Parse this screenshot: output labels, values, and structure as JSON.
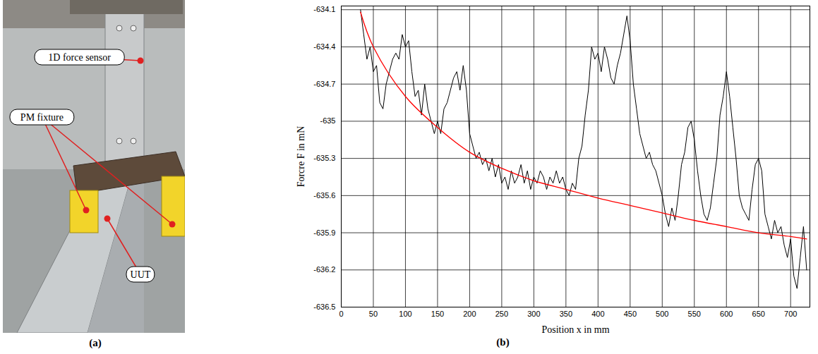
{
  "photo": {
    "labels": [
      "1D force sensor",
      "PM fixture",
      "UUT"
    ],
    "caption": "(a)"
  },
  "chart_data": {
    "type": "line",
    "caption": "(b)",
    "x_label": "Position x in mm",
    "y_label": "Forcre F in mN",
    "xlim": [
      0,
      730
    ],
    "xticks": [
      0,
      50,
      100,
      150,
      200,
      250,
      300,
      350,
      400,
      450,
      500,
      550,
      600,
      650,
      700
    ],
    "ylim": [
      -636.5,
      -634.07
    ],
    "yticks": [
      -634.1,
      -634.4,
      -634.7,
      -635,
      -635.3,
      -635.6,
      -635.9,
      -636.2,
      -636.5
    ],
    "grid": true,
    "series": [
      {
        "color": "#000000",
        "x": [
          30,
          35,
          40,
          45,
          50,
          55,
          60,
          65,
          70,
          75,
          80,
          85,
          90,
          95,
          100,
          105,
          110,
          115,
          120,
          125,
          130,
          135,
          140,
          145,
          150,
          155,
          160,
          165,
          170,
          175,
          180,
          185,
          190,
          195,
          200,
          205,
          210,
          215,
          220,
          225,
          230,
          235,
          240,
          245,
          250,
          255,
          260,
          265,
          270,
          275,
          280,
          285,
          290,
          295,
          300,
          305,
          310,
          315,
          320,
          325,
          330,
          335,
          340,
          345,
          350,
          355,
          360,
          365,
          370,
          375,
          380,
          385,
          390,
          395,
          400,
          405,
          410,
          415,
          420,
          425,
          430,
          435,
          440,
          445,
          450,
          455,
          460,
          465,
          470,
          475,
          480,
          485,
          490,
          495,
          500,
          505,
          510,
          515,
          520,
          525,
          530,
          535,
          540,
          545,
          550,
          555,
          560,
          565,
          570,
          575,
          580,
          585,
          590,
          595,
          600,
          605,
          610,
          615,
          620,
          625,
          630,
          635,
          640,
          645,
          650,
          655,
          660,
          665,
          670,
          675,
          680,
          685,
          690,
          695,
          700,
          705,
          710,
          715,
          720,
          725
        ],
        "values": [
          -634.1,
          -634.3,
          -634.5,
          -634.4,
          -634.6,
          -634.55,
          -634.85,
          -634.9,
          -634.7,
          -634.6,
          -634.5,
          -634.45,
          -634.5,
          -634.3,
          -634.4,
          -634.35,
          -634.6,
          -634.8,
          -634.75,
          -634.95,
          -634.7,
          -634.9,
          -635.0,
          -635.1,
          -635.0,
          -635.1,
          -634.9,
          -634.85,
          -634.75,
          -634.65,
          -634.6,
          -634.75,
          -634.55,
          -634.75,
          -635.1,
          -635.2,
          -635.3,
          -635.25,
          -635.35,
          -635.3,
          -635.4,
          -635.3,
          -635.45,
          -635.35,
          -635.5,
          -635.45,
          -635.55,
          -635.4,
          -635.5,
          -635.45,
          -635.35,
          -635.5,
          -635.4,
          -635.55,
          -635.45,
          -635.5,
          -635.4,
          -635.45,
          -635.55,
          -635.45,
          -635.5,
          -635.4,
          -635.5,
          -635.45,
          -635.55,
          -635.6,
          -635.5,
          -635.55,
          -635.3,
          -635.2,
          -634.95,
          -634.75,
          -634.4,
          -634.5,
          -634.45,
          -634.6,
          -634.4,
          -634.5,
          -634.65,
          -634.7,
          -634.55,
          -634.45,
          -634.3,
          -634.15,
          -634.35,
          -634.7,
          -634.9,
          -635.1,
          -635.2,
          -635.3,
          -635.25,
          -635.35,
          -635.4,
          -635.5,
          -635.6,
          -635.75,
          -635.85,
          -635.7,
          -635.8,
          -635.6,
          -635.35,
          -635.25,
          -635.05,
          -635.0,
          -635.15,
          -635.4,
          -635.6,
          -635.75,
          -635.8,
          -635.7,
          -635.5,
          -635.3,
          -634.95,
          -634.8,
          -634.6,
          -634.8,
          -635.05,
          -635.3,
          -635.6,
          -635.7,
          -635.75,
          -635.8,
          -635.55,
          -635.35,
          -635.3,
          -635.4,
          -635.75,
          -635.85,
          -635.95,
          -635.8,
          -635.9,
          -635.85,
          -636.0,
          -636.1,
          -635.95,
          -636.25,
          -636.35,
          -636.1,
          -635.85,
          -636.2
        ]
      },
      {
        "color": "#ff0000",
        "x": [
          30,
          50,
          100,
          150,
          200,
          250,
          300,
          350,
          400,
          450,
          500,
          550,
          600,
          650,
          700,
          725
        ],
        "values": [
          -634.12,
          -634.4,
          -634.8,
          -635.05,
          -635.25,
          -635.38,
          -635.48,
          -635.55,
          -635.62,
          -635.68,
          -635.74,
          -635.8,
          -635.85,
          -635.9,
          -635.93,
          -635.95
        ]
      }
    ]
  }
}
